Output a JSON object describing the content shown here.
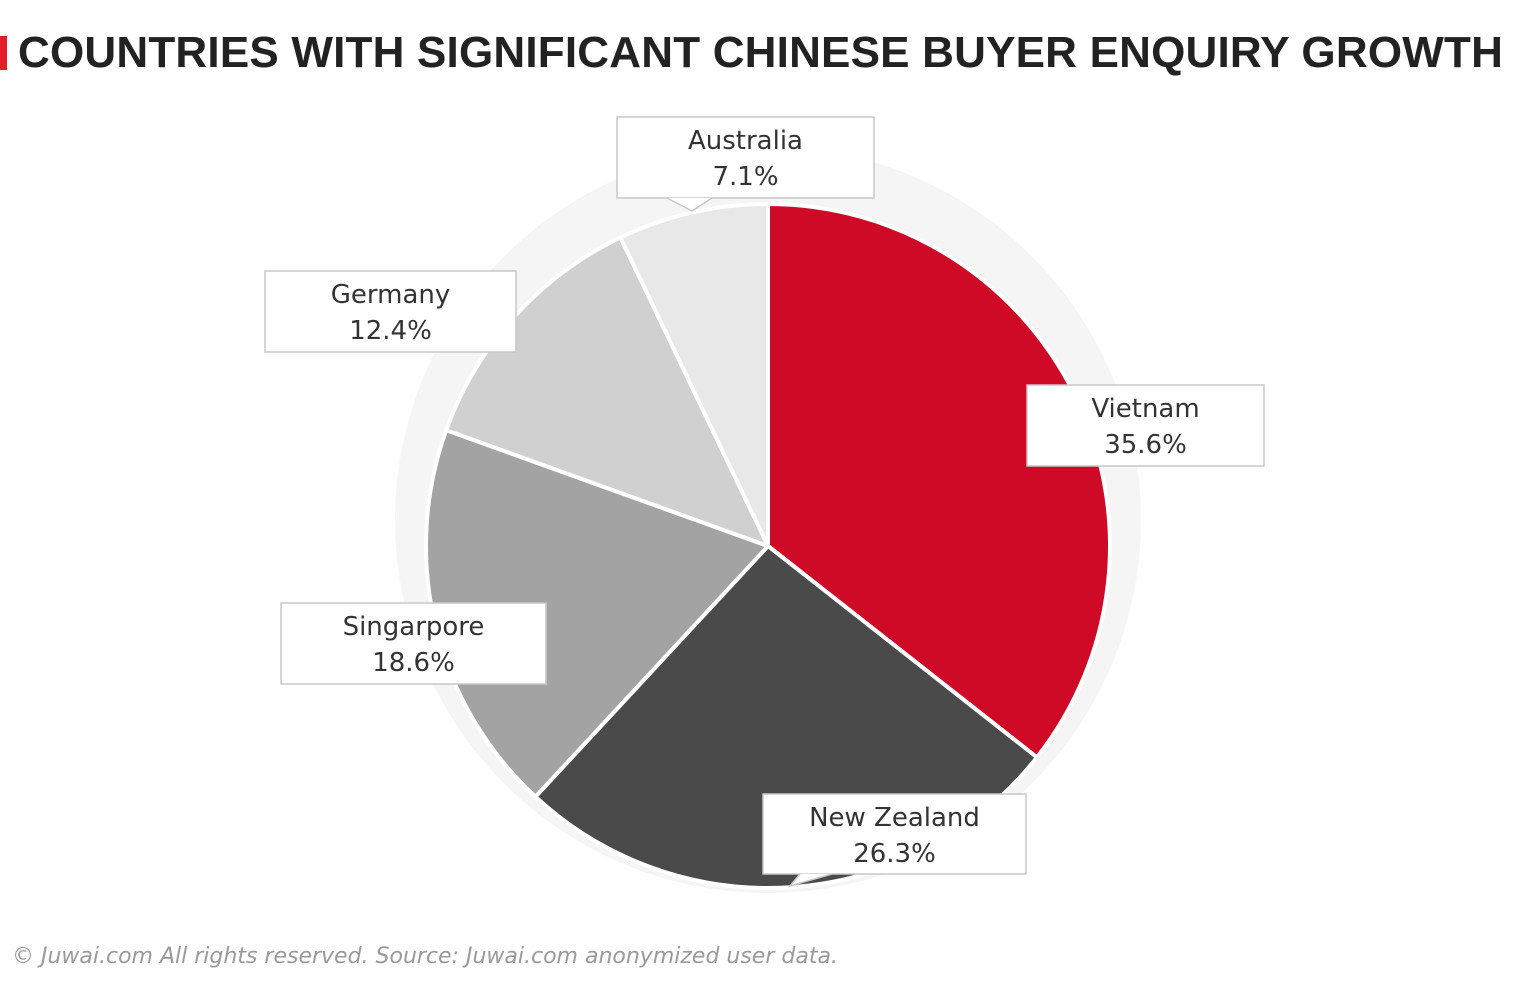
{
  "title": "COUNTRIES WITH SIGNIFICANT CHINESE BUYER ENQUIRY GROWTH",
  "footer": "© Juwai.com All rights reserved. Source: Juwai.com anonymized user data.",
  "colors": {
    "accent": "#e41e26",
    "vietnam": "#cf0a26",
    "new_zealand": "#4a4a4a",
    "singapore": "#a3a3a3",
    "germany": "#d0d0d0",
    "australia": "#e8e8e8",
    "halo": "#f5f5f5"
  },
  "chart_data": {
    "type": "pie",
    "title": "COUNTRIES WITH SIGNIFICANT CHINESE BUYER ENQUIRY GROWTH",
    "slices": [
      {
        "label": "Vietnam",
        "value": 35.6,
        "display": "35.6%",
        "color": "#cf0a26"
      },
      {
        "label": "New Zealand",
        "value": 26.3,
        "display": "26.3%",
        "color": "#4a4a4a"
      },
      {
        "label": "Singarpore",
        "value": 18.6,
        "display": "18.6%",
        "color": "#a3a3a3"
      },
      {
        "label": "Germany",
        "value": 12.4,
        "display": "12.4%",
        "color": "#d0d0d0"
      },
      {
        "label": "Australia",
        "value": 7.1,
        "display": "7.1%",
        "color": "#e8e8e8"
      }
    ],
    "start_angle": "12 o'clock",
    "direction": "clockwise",
    "legend": "none"
  }
}
